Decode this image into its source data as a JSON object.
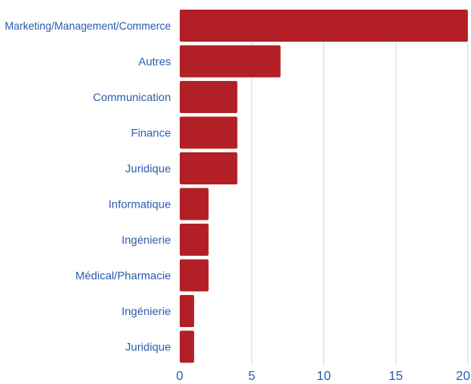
{
  "colors": {
    "bar": "#b22025",
    "label": "#2a5cae",
    "grid": "#c9dbe6"
  },
  "chart_data": {
    "type": "bar",
    "orientation": "horizontal",
    "title": "",
    "xlabel": "",
    "ylabel": "",
    "categories": [
      "Marketing/Management/Commerce",
      "Autres",
      "Communication",
      "Finance",
      "Juridique",
      "Informatique",
      "Ingénierie",
      "Médical/Pharmacie",
      "Ingénierie",
      "Juridique"
    ],
    "values": [
      20,
      7,
      4,
      4,
      4,
      2,
      2,
      2,
      1,
      1
    ],
    "xlim": [
      0,
      20
    ],
    "xticks": [
      0,
      5,
      10,
      15,
      20
    ],
    "xtick_labels": [
      "0",
      "5",
      "10",
      "15",
      "20"
    ],
    "grid": "vertical"
  }
}
